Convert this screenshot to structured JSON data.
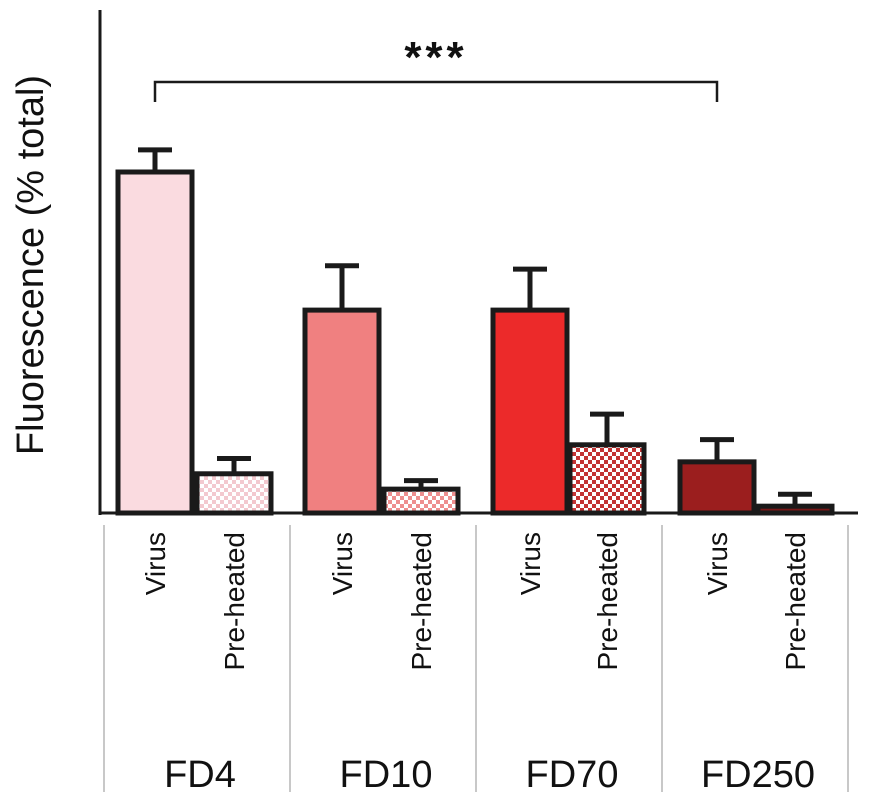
{
  "chart_data": {
    "type": "bar",
    "title": "",
    "xlabel": "",
    "ylabel": "Fluorescence (% total)",
    "ylim": [
      0,
      100
    ],
    "y_ticks_shown": false,
    "groups": [
      {
        "name": "FD4",
        "bars": [
          {
            "category": "Virus",
            "value": 100,
            "error": 6.5,
            "color": "#fadbe0",
            "pattern": "solid"
          },
          {
            "category": "Pre-heated",
            "value": 11.5,
            "error": 4.5,
            "color": "#f3c9cf",
            "pattern": "checker"
          }
        ]
      },
      {
        "name": "FD10",
        "bars": [
          {
            "category": "Virus",
            "value": 59.5,
            "error": 13,
            "color": "#f08080",
            "pattern": "solid"
          },
          {
            "category": "Pre-heated",
            "value": 7,
            "error": 2.5,
            "color": "#ee8f8f",
            "pattern": "checker"
          }
        ]
      },
      {
        "name": "FD70",
        "bars": [
          {
            "category": "Virus",
            "value": 59.5,
            "error": 12,
            "color": "#ec2a2a",
            "pattern": "solid"
          },
          {
            "category": "Pre-heated",
            "value": 20,
            "error": 9,
            "color": "#c33333",
            "pattern": "checker"
          }
        ]
      },
      {
        "name": "FD250",
        "bars": [
          {
            "category": "Virus",
            "value": 15,
            "error": 6.5,
            "color": "#9b1e1e",
            "pattern": "solid"
          },
          {
            "category": "Pre-heated",
            "value": 2,
            "error": 3.5,
            "color": "#7a1818",
            "pattern": "solid"
          }
        ]
      }
    ],
    "annotation": {
      "text": "***",
      "from": "FD4 Virus",
      "to": "FD250 Virus"
    },
    "grid": false,
    "legend": "none"
  }
}
